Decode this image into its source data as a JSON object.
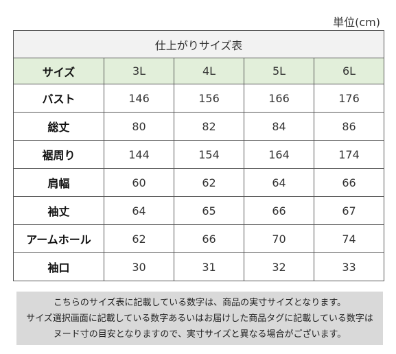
{
  "unit_label": "単位(cm)",
  "table": {
    "title": "仕上がりサイズ表",
    "header_label": "サイズ",
    "sizes": [
      "3L",
      "4L",
      "5L",
      "6L"
    ],
    "rows": [
      {
        "label": "バスト",
        "values": [
          "146",
          "156",
          "166",
          "176"
        ]
      },
      {
        "label": "総丈",
        "values": [
          "80",
          "82",
          "84",
          "86"
        ]
      },
      {
        "label": "裾周り",
        "values": [
          "144",
          "154",
          "164",
          "174"
        ]
      },
      {
        "label": "肩幅",
        "values": [
          "60",
          "62",
          "64",
          "66"
        ]
      },
      {
        "label": "袖丈",
        "values": [
          "64",
          "65",
          "66",
          "67"
        ]
      },
      {
        "label": "アームホール",
        "values": [
          "62",
          "66",
          "70",
          "74"
        ]
      },
      {
        "label": "袖口",
        "values": [
          "30",
          "31",
          "32",
          "33"
        ]
      }
    ]
  },
  "note_lines": [
    "こちらのサイズ表に記載している数字は、商品の実寸サイズとなります。",
    "サイズ選択画面に記載している数字あるいはお届けした商品タグに記載している数字は",
    "ヌード寸の目安となりますので、実寸サイズと異なる場合がございます。"
  ]
}
